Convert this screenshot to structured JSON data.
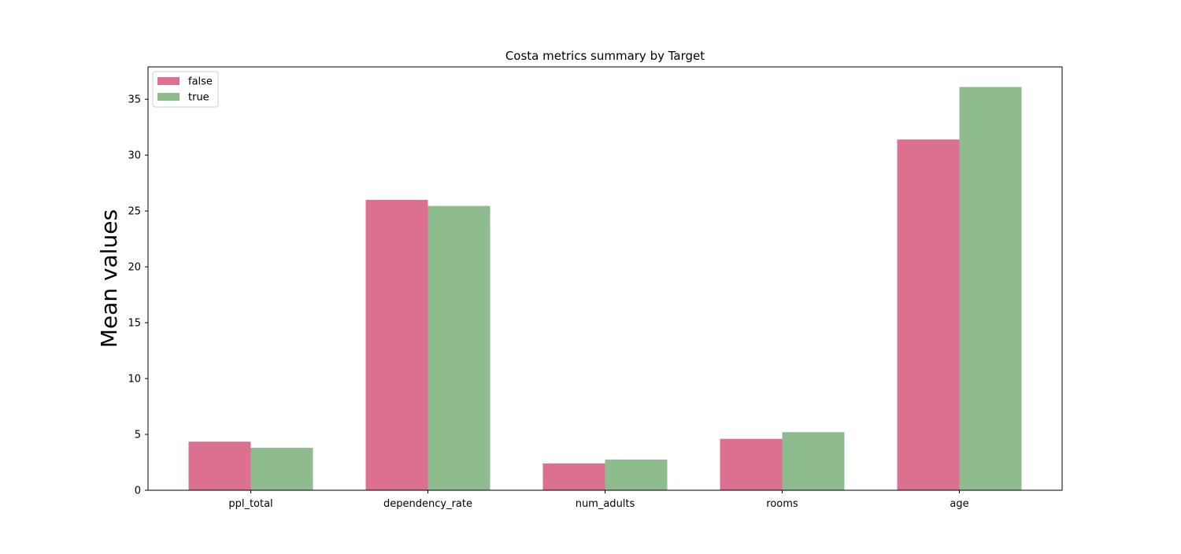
{
  "chart_data": {
    "type": "bar",
    "title": "Costa metrics summary by Target",
    "xlabel": "",
    "ylabel": "Mean values",
    "categories": [
      "ppl_total",
      "dependency_rate",
      "num_adults",
      "rooms",
      "age"
    ],
    "series": [
      {
        "name": "false",
        "values": [
          4.35,
          26.0,
          2.4,
          4.6,
          31.4
        ],
        "color": "#dc7090"
      },
      {
        "name": "true",
        "values": [
          3.8,
          25.45,
          2.75,
          5.2,
          36.1
        ],
        "color": "#8fbc8f"
      }
    ],
    "ylim": [
      0,
      37.9
    ],
    "yticks": [
      "0",
      "5",
      "10",
      "15",
      "20",
      "25",
      "30",
      "35"
    ],
    "grid": false,
    "legend_position": "top-left"
  }
}
